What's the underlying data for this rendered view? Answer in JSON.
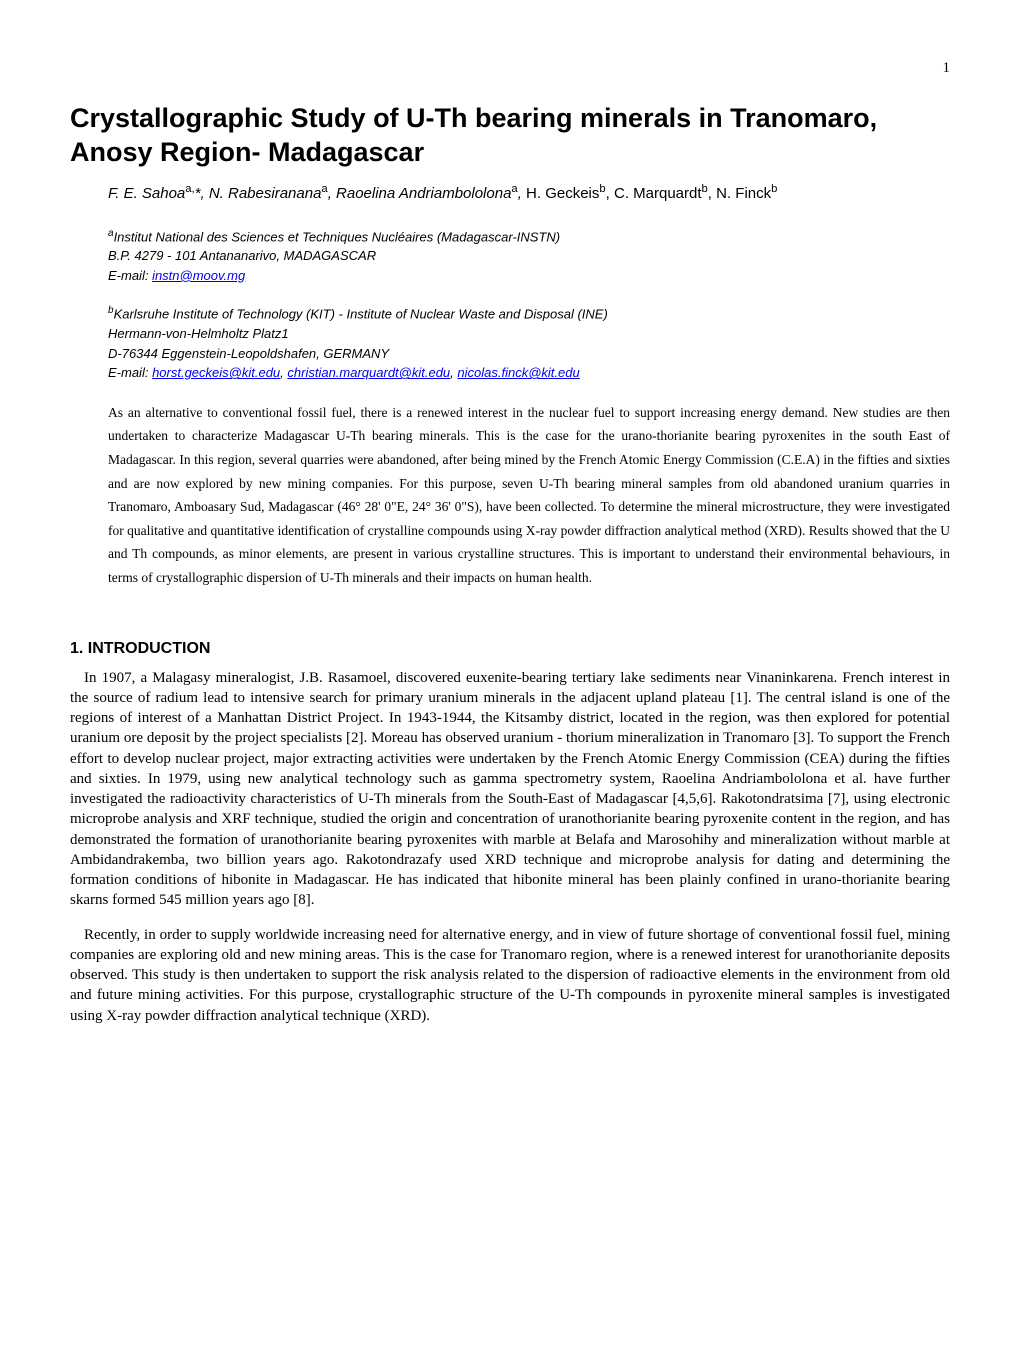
{
  "page_number": "1",
  "title": "Crystallographic Study of U-Th bearing minerals in Tranomaro, Anosy Region- Madagascar",
  "authors": {
    "italic_part": "F. E. Sahoa",
    "sup1": "a,",
    "italic_part2": "*, N. Rabesiranana",
    "sup2": "a",
    "italic_part3": ",  Raoelina Andriambololona",
    "sup3": "a",
    "italic_part4": ", ",
    "plain_part": "H. Geckeis",
    "sup4": "b",
    "plain_part2": ", C. Marquardt",
    "sup5": "b",
    "plain_part3": ", N. Finck",
    "sup6": "b"
  },
  "affiliation_a": {
    "sup": "a",
    "line1": "Institut National des Sciences et Techniques Nucléaires (Madagascar-INSTN)",
    "line2": "B.P. 4279 - 101 Antananarivo, MADAGASCAR",
    "email_label": "E-mail: ",
    "email": "instn@moov.mg"
  },
  "affiliation_b": {
    "sup": "b",
    "line1": "Karlsruhe Institute of Technology (KIT) - Institute of Nuclear Waste and Disposal (INE)",
    "line2": "Hermann-von-Helmholtz Platz1",
    "line3": "D-76344 Eggenstein-Leopoldshafen, GERMANY",
    "email_label": "E-mail: ",
    "email1": "horst.geckeis@kit.edu",
    "sep1": ", ",
    "email2": "christian.marquardt@kit.edu",
    "sep2": ", ",
    "email3": "nicolas.finck@kit.edu"
  },
  "abstract": "As an alternative to conventional fossil fuel, there is a renewed interest in the nuclear fuel to support increasing energy demand. New studies are then undertaken to characterize Madagascar U-Th bearing minerals. This is the case for the urano-thorianite bearing pyroxenites in the south East of Madagascar. In this region, several quarries were abandoned, after being mined by the French Atomic Energy Commission (C.E.A) in the fifties and sixties and are now explored by new mining companies. For this purpose, seven U-Th bearing mineral samples from old abandoned uranium quarries in Tranomaro, Amboasary Sud, Madagascar (46° 28' 0\"E, 24° 36' 0\"S), have been collected.  To determine the mineral microstructure, they were investigated for qualitative and quantitative identification of crystalline compounds using X-ray powder diffraction analytical method (XRD). Results showed that the U and Th compounds, as minor elements, are present in various crystalline structures. This is important to understand their environmental behaviours, in terms of crystallographic dispersion of U-Th minerals and their impacts on human health.",
  "section1_heading": "1.  INTRODUCTION",
  "section1_p1": "In 1907, a Malagasy mineralogist, J.B. Rasamoel, discovered euxenite-bearing tertiary lake sediments near Vinaninkarena. French interest in the source of radium lead to intensive search for primary uranium minerals in the adjacent upland plateau [1].  The central island is one of the regions of interest of a Manhattan District Project. In 1943-1944, the Kitsamby district, located in the region, was then explored for potential uranium ore deposit by the project specialists [2]. Moreau has observed uranium - thorium mineralization in Tranomaro [3]. To support the French effort to develop nuclear project, major extracting activities were undertaken by the French Atomic Energy Commission (CEA) during the fifties and sixties. In 1979, using new analytical technology such as gamma spectrometry system, Raoelina Andriambololona et al. have further investigated the radioactivity characteristics of U-Th minerals from the South-East of  Madagascar [4,5,6]. Rakotondratsima [7], using electronic microprobe analysis and  XRF technique, studied the origin and concentration  of uranothorianite bearing pyroxenite content in the region, and has demonstrated the formation of  uranothorianite bearing pyroxenites with marble at Belafa and Marosohihy and mineralization without marble at Ambidandrakemba, two billion years ago.  Rakotondrazafy used XRD technique and microprobe analysis for dating and determining the formation conditions of hibonite in Madagascar. He has indicated that hibonite mineral has been plainly confined in urano-thorianite bearing skarns formed 545 million years ago [8].",
  "section1_p2": "Recently, in order to supply worldwide increasing need for alternative energy, and in view of future shortage of conventional fossil fuel, mining companies are exploring old and new mining areas. This is the case for Tranomaro region, where is a renewed interest for uranothorianite deposits observed. This study is then undertaken to support the risk analysis related to the dispersion of radioactive elements in the environment from old and future mining activities. For this purpose, crystallographic structure of the U-Th compounds in pyroxenite mineral samples is investigated using X-ray powder diffraction analytical technique (XRD).",
  "colors": {
    "text": "#000000",
    "link": "#0000ee",
    "background": "#ffffff"
  },
  "fonts": {
    "body": "Times New Roman",
    "headings": "Arial"
  }
}
